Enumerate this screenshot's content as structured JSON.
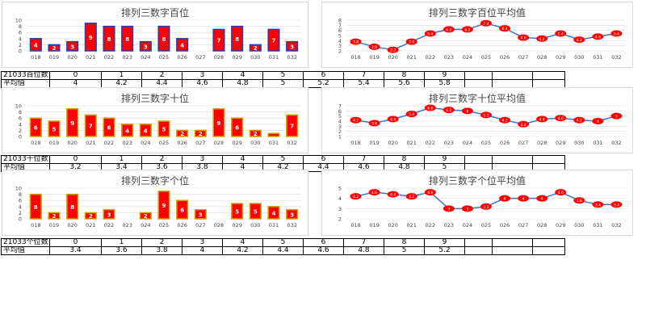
{
  "colors": {
    "bar_fill": "#ff0000",
    "bar_blue_border": "#1f3fbf",
    "bar_gold_border": "#c9a400",
    "line": "#4472c4",
    "marker": "#ff0000",
    "grid": "#d9d9d9"
  },
  "charts": [
    {
      "section": "hundreds",
      "bar_title": "排列三数字百位",
      "line_title": "排列三数字百位平均值",
      "bar_border": "blue",
      "table": {
        "row1_label": "21033百位数",
        "row2_label": "平均值",
        "digits": [
          "0",
          "1",
          "2",
          "3",
          "4",
          "5",
          "6",
          "7",
          "8",
          "9"
        ],
        "averages": [
          "4",
          "4.2",
          "4.4",
          "4.6",
          "4.8",
          "5",
          "5.2",
          "5.4",
          "5.6",
          "5.8"
        ]
      }
    },
    {
      "section": "tens",
      "bar_title": "排列三数字十位",
      "line_title": "排列三数字十位平均值",
      "bar_border": "gold",
      "table": {
        "row1_label": "21033十位数",
        "row2_label": "平均值",
        "digits": [
          "0",
          "1",
          "2",
          "3",
          "4",
          "5",
          "6",
          "7",
          "8",
          "9"
        ],
        "averages": [
          "3.2",
          "3.4",
          "3.6",
          "3.8",
          "4",
          "4.2",
          "4.4",
          "4.6",
          "4.8",
          "5"
        ]
      }
    },
    {
      "section": "units",
      "bar_title": "排列三数字个位",
      "line_title": "排列三数字个位平均值",
      "bar_border": "gold",
      "table": {
        "row1_label": "21033个位数",
        "row2_label": "平均值",
        "digits": [
          "0",
          "1",
          "2",
          "3",
          "4",
          "5",
          "6",
          "7",
          "8",
          "9"
        ],
        "averages": [
          "3.4",
          "3.6",
          "3.8",
          "4",
          "4.2",
          "4.4",
          "4.6",
          "4.8",
          "5",
          "5.2"
        ]
      }
    }
  ],
  "chart_data": [
    {
      "type": "bar",
      "title": "排列三数字百位",
      "categories": [
        "018",
        "019",
        "020",
        "021",
        "022",
        "023",
        "024",
        "025",
        "026",
        "027",
        "028",
        "029",
        "030",
        "031",
        "032"
      ],
      "values": [
        4,
        2,
        3,
        9,
        8,
        8,
        3,
        8,
        4,
        0,
        7,
        8,
        2,
        7,
        3
      ],
      "ylim": [
        0,
        10
      ],
      "yticks": [
        0,
        2,
        4,
        6,
        8,
        10
      ],
      "grid": true
    },
    {
      "type": "line",
      "title": "排列三数字百位平均值",
      "categories": [
        "018",
        "019",
        "020",
        "021",
        "022",
        "023",
        "024",
        "025",
        "026",
        "027",
        "028",
        "029",
        "030",
        "031",
        "032"
      ],
      "values": [
        3.8,
        2.8,
        2.2,
        3.8,
        5.4,
        6.2,
        6.2,
        7.4,
        6.4,
        4.6,
        4.4,
        5.4,
        4.2,
        4.8,
        5.4
      ],
      "ylim": [
        2,
        8
      ],
      "yticks": [
        2,
        3,
        4,
        5,
        6,
        7,
        8
      ],
      "grid": true
    },
    {
      "type": "bar",
      "title": "排列三数字十位",
      "categories": [
        "018",
        "019",
        "020",
        "021",
        "022",
        "023",
        "024",
        "025",
        "026",
        "027",
        "028",
        "029",
        "030",
        "031",
        "032"
      ],
      "values": [
        6,
        5,
        9,
        7,
        6,
        4,
        4,
        5,
        2,
        2,
        9,
        6,
        2,
        1,
        7
      ],
      "ylim": [
        0,
        10
      ],
      "yticks": [
        0,
        2,
        4,
        6,
        8,
        10
      ],
      "grid": true
    },
    {
      "type": "line",
      "title": "排列三数字十位平均值",
      "categories": [
        "018",
        "019",
        "020",
        "021",
        "022",
        "023",
        "024",
        "025",
        "026",
        "027",
        "028",
        "029",
        "030",
        "031",
        "032"
      ],
      "values": [
        4.2,
        3.6,
        4.4,
        5.4,
        6.6,
        6.2,
        6,
        5.2,
        4.2,
        3.4,
        4.4,
        4.6,
        4.2,
        4,
        5
      ],
      "ylim": [
        1,
        7
      ],
      "yticks": [
        1,
        2,
        3,
        4,
        5,
        6,
        7
      ],
      "grid": true
    },
    {
      "type": "bar",
      "title": "排列三数字个位",
      "categories": [
        "018",
        "019",
        "020",
        "021",
        "022",
        "023",
        "024",
        "025",
        "026",
        "027",
        "028",
        "029",
        "030",
        "031",
        "032"
      ],
      "values": [
        8,
        2,
        8,
        2,
        3,
        0,
        2,
        9,
        6,
        3,
        0,
        5,
        5,
        4,
        3
      ],
      "ylim": [
        0,
        10
      ],
      "yticks": [
        0,
        2,
        4,
        6,
        8,
        10
      ],
      "grid": true
    },
    {
      "type": "line",
      "title": "排列三数字个位平均值",
      "categories": [
        "018",
        "019",
        "020",
        "021",
        "022",
        "023",
        "024",
        "025",
        "026",
        "027",
        "028",
        "029",
        "030",
        "031",
        "032"
      ],
      "values": [
        4.2,
        4.6,
        4.4,
        4.2,
        4.6,
        3,
        3,
        3.2,
        4,
        4,
        4,
        4.6,
        3.8,
        3.4,
        3.4
      ],
      "ylim": [
        2,
        5
      ],
      "yticks": [
        2,
        3,
        4,
        5
      ],
      "grid": true
    }
  ]
}
